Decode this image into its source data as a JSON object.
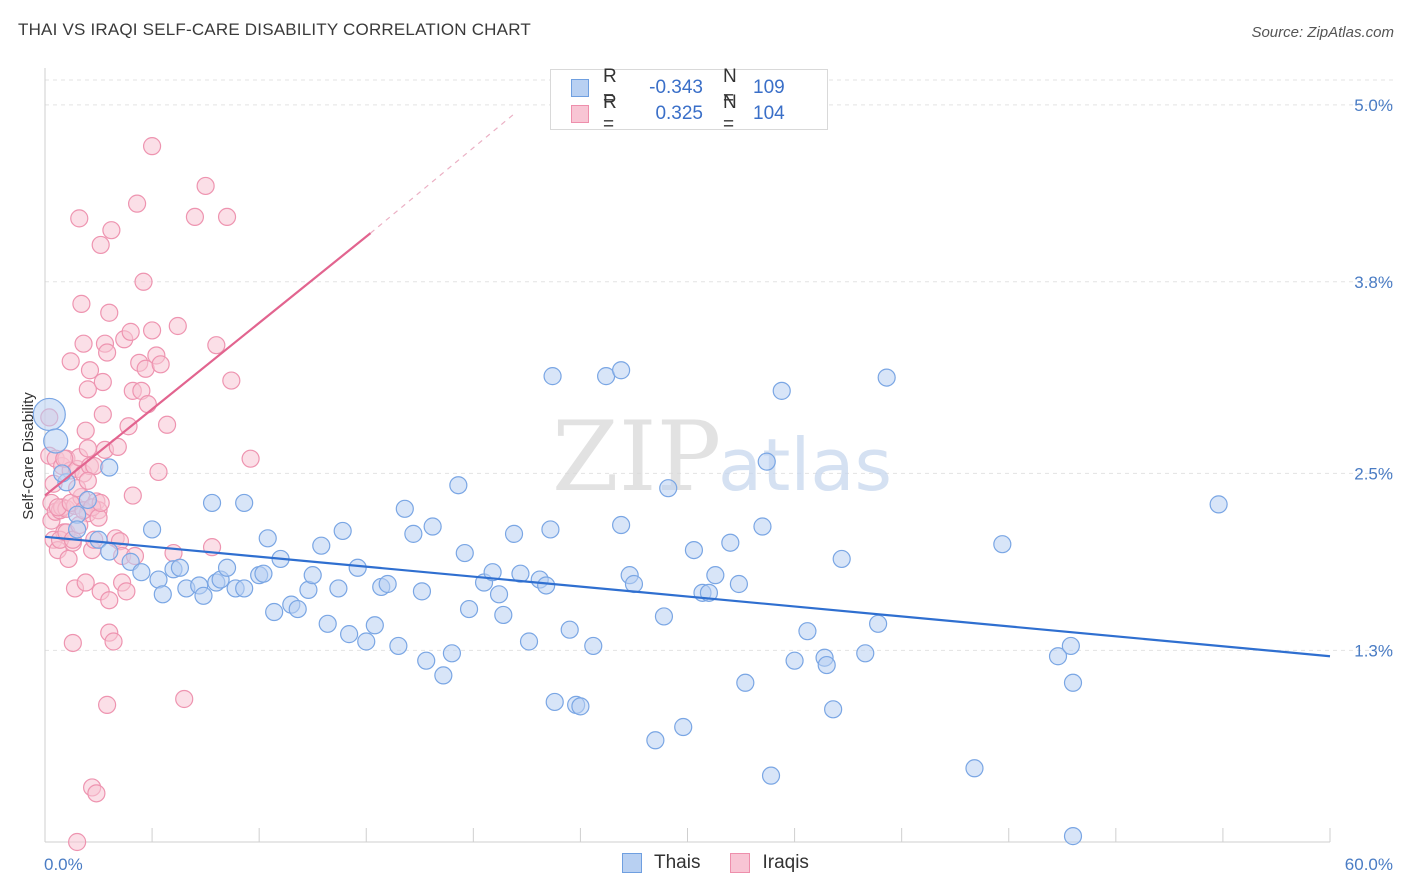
{
  "title": "THAI VS IRAQI SELF-CARE DISABILITY CORRELATION CHART",
  "source": "Source: ZipAtlas.com",
  "watermark": {
    "zip": "ZIP",
    "atlas": "atlas"
  },
  "legend": {
    "series": [
      {
        "r_label": "R =",
        "r_value": "-0.343",
        "n_label": "N =",
        "n_value": "109",
        "fill": "#b8d0f2",
        "stroke": "#6f9fe0"
      },
      {
        "r_label": "R =",
        "r_value": "0.325",
        "n_label": "N =",
        "n_value": "104",
        "fill": "#f8c5d4",
        "stroke": "#ee8fac"
      }
    ]
  },
  "bottom_legend": [
    {
      "label": "Thais",
      "fill": "#b8d0f2",
      "stroke": "#6f9fe0"
    },
    {
      "label": "Iraqis",
      "fill": "#f8c5d4",
      "stroke": "#ee8fac"
    }
  ],
  "chart_data": {
    "type": "scatter",
    "title": "THAI VS IRAQI SELF-CARE DISABILITY CORRELATION CHART",
    "xlabel": "",
    "ylabel": "Self-Care Disability",
    "xlim": [
      0,
      60
    ],
    "ylim": [
      0,
      5.25
    ],
    "x_tick_labels": [
      "0.0%",
      "60.0%"
    ],
    "y_ticks": [
      1.3,
      2.5,
      3.8,
      5.0
    ],
    "y_tick_labels": [
      "1.3%",
      "2.5%",
      "3.8%",
      "5.0%"
    ],
    "grid": true,
    "legend_position": "top-center",
    "colors": {
      "thais": "#3a74d1",
      "iraqis": "#e06a93"
    },
    "series": [
      {
        "name": "Thais",
        "trend": {
          "x": [
            0,
            60
          ],
          "y": [
            2.07,
            1.26
          ]
        },
        "points": [
          [
            0.2,
            2.9
          ],
          [
            0.5,
            2.72
          ],
          [
            1.0,
            2.44
          ],
          [
            1.5,
            2.22
          ],
          [
            3.0,
            2.54
          ],
          [
            1.5,
            2.12
          ],
          [
            2.5,
            2.05
          ],
          [
            3.0,
            1.97
          ],
          [
            4.0,
            1.9
          ],
          [
            5.0,
            2.12
          ],
          [
            4.5,
            1.83
          ],
          [
            5.3,
            1.78
          ],
          [
            5.5,
            1.68
          ],
          [
            6.0,
            1.85
          ],
          [
            6.3,
            1.86
          ],
          [
            6.6,
            1.72
          ],
          [
            7.2,
            1.74
          ],
          [
            7.4,
            1.67
          ],
          [
            7.8,
            2.3
          ],
          [
            8.0,
            1.76
          ],
          [
            8.2,
            1.78
          ],
          [
            8.5,
            1.86
          ],
          [
            8.9,
            1.72
          ],
          [
            9.3,
            1.72
          ],
          [
            9.3,
            2.3
          ],
          [
            10.0,
            1.81
          ],
          [
            10.2,
            1.82
          ],
          [
            10.4,
            2.06
          ],
          [
            10.7,
            1.56
          ],
          [
            11.0,
            1.92
          ],
          [
            11.5,
            1.61
          ],
          [
            11.8,
            1.58
          ],
          [
            12.3,
            1.71
          ],
          [
            12.5,
            1.81
          ],
          [
            12.9,
            2.01
          ],
          [
            13.2,
            1.48
          ],
          [
            13.7,
            1.72
          ],
          [
            13.9,
            2.11
          ],
          [
            14.2,
            1.41
          ],
          [
            14.6,
            1.86
          ],
          [
            15.0,
            1.36
          ],
          [
            15.4,
            1.47
          ],
          [
            15.7,
            1.73
          ],
          [
            16.0,
            1.75
          ],
          [
            16.5,
            1.33
          ],
          [
            16.8,
            2.26
          ],
          [
            17.2,
            2.09
          ],
          [
            17.6,
            1.7
          ],
          [
            17.8,
            1.23
          ],
          [
            18.1,
            2.14
          ],
          [
            18.6,
            1.13
          ],
          [
            19.0,
            1.28
          ],
          [
            19.3,
            2.42
          ],
          [
            19.6,
            1.96
          ],
          [
            19.8,
            1.58
          ],
          [
            20.5,
            1.76
          ],
          [
            20.9,
            1.83
          ],
          [
            21.2,
            1.68
          ],
          [
            21.4,
            1.54
          ],
          [
            21.9,
            2.09
          ],
          [
            22.2,
            1.82
          ],
          [
            22.6,
            1.36
          ],
          [
            23.1,
            1.78
          ],
          [
            23.4,
            1.74
          ],
          [
            23.6,
            2.12
          ],
          [
            23.7,
            3.16
          ],
          [
            23.8,
            0.95
          ],
          [
            24.5,
            1.44
          ],
          [
            24.8,
            0.93
          ],
          [
            25.0,
            0.92
          ],
          [
            25.6,
            1.33
          ],
          [
            26.2,
            3.16
          ],
          [
            26.9,
            3.2
          ],
          [
            26.9,
            2.15
          ],
          [
            27.3,
            1.81
          ],
          [
            27.5,
            1.75
          ],
          [
            28.5,
            0.69
          ],
          [
            28.9,
            1.53
          ],
          [
            29.1,
            2.4
          ],
          [
            29.8,
            0.78
          ],
          [
            30.3,
            1.98
          ],
          [
            30.7,
            1.69
          ],
          [
            31.0,
            1.69
          ],
          [
            31.3,
            1.81
          ],
          [
            32.0,
            2.03
          ],
          [
            32.4,
            1.75
          ],
          [
            32.7,
            1.08
          ],
          [
            33.5,
            2.14
          ],
          [
            33.7,
            2.58
          ],
          [
            33.9,
            0.45
          ],
          [
            34.4,
            3.06
          ],
          [
            35.0,
            1.23
          ],
          [
            35.6,
            1.43
          ],
          [
            36.4,
            1.25
          ],
          [
            36.5,
            1.2
          ],
          [
            36.8,
            0.9
          ],
          [
            37.2,
            1.92
          ],
          [
            38.3,
            1.28
          ],
          [
            38.9,
            1.48
          ],
          [
            39.3,
            3.15
          ],
          [
            43.4,
            0.5
          ],
          [
            44.7,
            2.02
          ],
          [
            47.3,
            1.26
          ],
          [
            47.9,
            1.33
          ],
          [
            48.0,
            1.08
          ],
          [
            48.0,
            0.04
          ],
          [
            54.8,
            2.29
          ],
          [
            0.8,
            2.5
          ],
          [
            2.0,
            2.32
          ]
        ]
      },
      {
        "name": "Iraqis",
        "trend": {
          "x": [
            0,
            15.2
          ],
          "y": [
            2.35,
            4.13
          ],
          "dash_to": {
            "x": 22.0,
            "y": 4.95
          }
        },
        "points": [
          [
            0.2,
            2.62
          ],
          [
            0.3,
            2.3
          ],
          [
            0.3,
            2.18
          ],
          [
            0.4,
            2.05
          ],
          [
            0.5,
            2.6
          ],
          [
            0.5,
            2.24
          ],
          [
            0.6,
            1.98
          ],
          [
            0.7,
            2.25
          ],
          [
            0.8,
            2.55
          ],
          [
            0.8,
            2.27
          ],
          [
            0.9,
            2.1
          ],
          [
            1.0,
            2.6
          ],
          [
            1.0,
            2.26
          ],
          [
            1.1,
            1.92
          ],
          [
            1.2,
            3.26
          ],
          [
            1.2,
            2.52
          ],
          [
            1.3,
            1.35
          ],
          [
            1.3,
            2.03
          ],
          [
            1.4,
            1.72
          ],
          [
            1.4,
            2.28
          ],
          [
            1.5,
            0.0
          ],
          [
            1.5,
            2.53
          ],
          [
            1.6,
            4.23
          ],
          [
            1.6,
            2.61
          ],
          [
            1.7,
            2.34
          ],
          [
            1.7,
            3.65
          ],
          [
            1.8,
            3.38
          ],
          [
            1.8,
            2.5
          ],
          [
            1.9,
            2.79
          ],
          [
            1.9,
            1.76
          ],
          [
            2.0,
            2.23
          ],
          [
            2.0,
            3.07
          ],
          [
            2.0,
            2.67
          ],
          [
            2.1,
            2.55
          ],
          [
            2.1,
            3.2
          ],
          [
            2.2,
            0.37
          ],
          [
            2.2,
            1.98
          ],
          [
            2.3,
            2.55
          ],
          [
            2.4,
            0.33
          ],
          [
            2.4,
            2.31
          ],
          [
            2.5,
            2.25
          ],
          [
            2.6,
            4.05
          ],
          [
            2.6,
            1.7
          ],
          [
            2.7,
            3.12
          ],
          [
            2.7,
            2.9
          ],
          [
            2.8,
            3.38
          ],
          [
            2.8,
            2.66
          ],
          [
            2.9,
            3.32
          ],
          [
            2.9,
            0.93
          ],
          [
            3.0,
            1.64
          ],
          [
            3.0,
            3.59
          ],
          [
            3.0,
            1.42
          ],
          [
            3.1,
            4.15
          ],
          [
            3.2,
            1.36
          ],
          [
            3.3,
            2.06
          ],
          [
            3.4,
            2.68
          ],
          [
            3.5,
            2.04
          ],
          [
            3.6,
            1.94
          ],
          [
            3.6,
            1.76
          ],
          [
            3.7,
            3.41
          ],
          [
            3.8,
            1.7
          ],
          [
            3.9,
            2.82
          ],
          [
            4.0,
            3.46
          ],
          [
            4.1,
            3.06
          ],
          [
            4.1,
            2.35
          ],
          [
            4.2,
            1.94
          ],
          [
            4.3,
            4.33
          ],
          [
            4.4,
            3.25
          ],
          [
            4.5,
            3.06
          ],
          [
            4.6,
            3.8
          ],
          [
            4.7,
            3.21
          ],
          [
            4.8,
            2.97
          ],
          [
            5.0,
            3.47
          ],
          [
            5.0,
            4.72
          ],
          [
            5.2,
            3.3
          ],
          [
            5.3,
            2.51
          ],
          [
            5.4,
            3.24
          ],
          [
            5.7,
            2.83
          ],
          [
            6.0,
            1.96
          ],
          [
            6.2,
            3.5
          ],
          [
            6.5,
            0.97
          ],
          [
            7.0,
            4.24
          ],
          [
            7.5,
            4.45
          ],
          [
            7.8,
            2.0
          ],
          [
            8.0,
            3.37
          ],
          [
            8.5,
            4.24
          ],
          [
            8.7,
            3.13
          ],
          [
            9.6,
            2.6
          ],
          [
            0.2,
            2.88
          ],
          [
            0.4,
            2.43
          ],
          [
            0.6,
            2.27
          ],
          [
            0.7,
            2.05
          ],
          [
            0.9,
            2.6
          ],
          [
            1.0,
            2.1
          ],
          [
            1.2,
            2.3
          ],
          [
            1.3,
            2.05
          ],
          [
            1.5,
            2.4
          ],
          [
            1.6,
            2.15
          ],
          [
            1.8,
            2.25
          ],
          [
            2.0,
            2.45
          ],
          [
            2.2,
            2.27
          ],
          [
            2.3,
            2.05
          ],
          [
            2.5,
            2.2
          ],
          [
            2.6,
            2.3
          ]
        ]
      }
    ]
  }
}
